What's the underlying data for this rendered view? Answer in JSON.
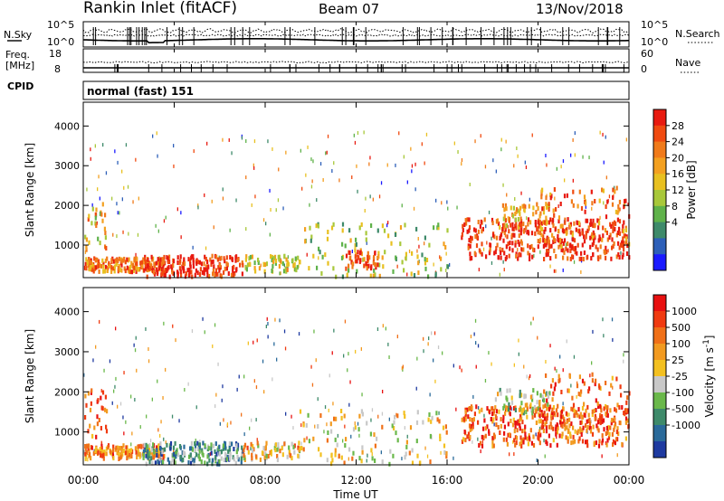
{
  "header": {
    "site": "Rankin Inlet (fitACF)",
    "beam": "Beam 07",
    "date": "13/Nov/2018"
  },
  "noise_panel": {
    "left_label": "N.Sky",
    "left_ticks": [
      "10^5",
      "10^0"
    ],
    "right_label": "N.Search",
    "right_ticks": [
      "10^5",
      "10^0"
    ]
  },
  "freq_panel": {
    "left_label_line1": "Freq.",
    "left_label_line2": "[MHz]",
    "left_ticks": [
      "18",
      "8"
    ],
    "right_label": "Nave",
    "right_ticks": [
      "60",
      "0"
    ]
  },
  "cpid_panel": {
    "label": "CPID",
    "value": "normal (fast) 151"
  },
  "xaxis": {
    "label": "Time UT",
    "ticks": [
      "00:00",
      "04:00",
      "08:00",
      "12:00",
      "16:00",
      "20:00",
      "00:00"
    ]
  },
  "chart_data": [
    {
      "type": "heatmap",
      "name": "power",
      "ylabel": "Slant Range [km]",
      "yticks": [
        1000,
        2000,
        3000,
        4000
      ],
      "ylim": [
        180,
        4600
      ],
      "xlim_hours": [
        0,
        24
      ],
      "colorbar": {
        "label": "Power [dB]",
        "ticks": [
          "4",
          "8",
          "12",
          "16",
          "20",
          "24",
          "28"
        ],
        "colors": [
          "#1a1aff",
          "#2d5fb8",
          "#3e8a6a",
          "#5fb24a",
          "#a8c83a",
          "#e8c020",
          "#f3a020",
          "#f07a1a",
          "#f04a10",
          "#e81a10"
        ]
      },
      "regions": [
        {
          "t0": 0.0,
          "t1": 3.6,
          "r0": 380,
          "r1": 720,
          "level": 0.75,
          "density": 0.85
        },
        {
          "t0": 0.0,
          "t1": 1.0,
          "r0": 900,
          "r1": 2100,
          "level": 0.6,
          "density": 0.5
        },
        {
          "t0": 2.6,
          "t1": 7.0,
          "r0": 250,
          "r1": 780,
          "level": 0.95,
          "density": 0.85
        },
        {
          "t0": 7.0,
          "t1": 9.5,
          "r0": 350,
          "r1": 780,
          "level": 0.5,
          "density": 0.5
        },
        {
          "t0": 9.5,
          "t1": 16.0,
          "r0": 250,
          "r1": 1600,
          "level": 0.45,
          "density": 0.3
        },
        {
          "t0": 11.5,
          "t1": 13.0,
          "r0": 450,
          "r1": 900,
          "level": 0.9,
          "density": 0.55
        },
        {
          "t0": 16.6,
          "t1": 24.0,
          "r0": 700,
          "r1": 1700,
          "level": 0.95,
          "density": 0.85
        },
        {
          "t0": 18.0,
          "t1": 20.5,
          "r0": 1500,
          "r1": 2100,
          "level": 0.65,
          "density": 0.45
        },
        {
          "t0": 20.0,
          "t1": 24.0,
          "r0": 1000,
          "r1": 2500,
          "level": 0.75,
          "density": 0.5
        }
      ]
    },
    {
      "type": "heatmap",
      "name": "velocity",
      "ylabel": "Slant Range [km]",
      "yticks": [
        1000,
        2000,
        3000,
        4000
      ],
      "ylim": [
        180,
        4600
      ],
      "xlim_hours": [
        0,
        24
      ],
      "colorbar": {
        "label": "Velocity [m s^-1]",
        "ticks": [
          "1000",
          "500",
          "100",
          "25",
          "-25",
          "-100",
          "-500",
          "-1000"
        ],
        "colors": [
          "#1e3aa0",
          "#2a6a9a",
          "#3e8a6a",
          "#6ab84a",
          "#c8c8c8",
          "#f3c020",
          "#f29a20",
          "#f07018",
          "#f03a10",
          "#e81010"
        ]
      },
      "regions": [
        {
          "t0": 0.0,
          "t1": 3.6,
          "r0": 380,
          "r1": 720,
          "level": 0.7,
          "density": 0.85
        },
        {
          "t0": 0.0,
          "t1": 1.0,
          "r0": 900,
          "r1": 2100,
          "level": 0.8,
          "density": 0.5
        },
        {
          "t0": 2.6,
          "t1": 7.0,
          "r0": 250,
          "r1": 780,
          "level": 0.25,
          "density": 0.85
        },
        {
          "t0": 7.0,
          "t1": 9.5,
          "r0": 350,
          "r1": 780,
          "level": 0.6,
          "density": 0.5
        },
        {
          "t0": 9.5,
          "t1": 16.0,
          "r0": 250,
          "r1": 1600,
          "level": 0.55,
          "density": 0.3
        },
        {
          "t0": 16.6,
          "t1": 24.0,
          "r0": 700,
          "r1": 1700,
          "level": 0.8,
          "density": 0.85
        },
        {
          "t0": 18.0,
          "t1": 20.5,
          "r0": 1500,
          "r1": 2100,
          "level": 0.45,
          "density": 0.45
        },
        {
          "t0": 20.0,
          "t1": 24.0,
          "r0": 1000,
          "r1": 2500,
          "level": 0.8,
          "density": 0.5
        }
      ]
    }
  ]
}
